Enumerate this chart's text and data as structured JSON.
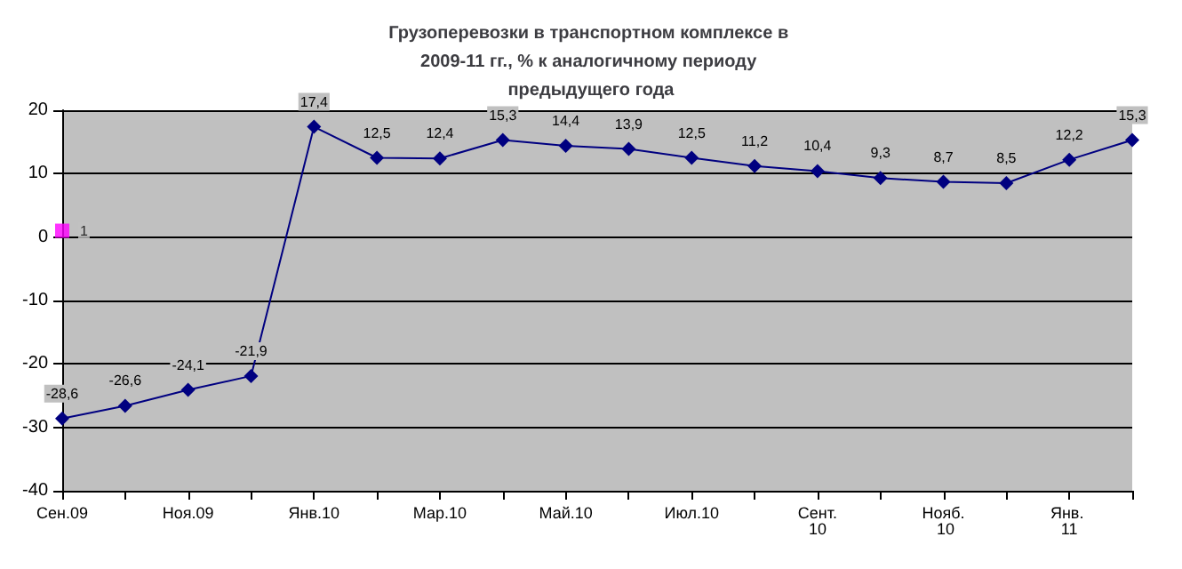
{
  "chart_data": {
    "type": "line",
    "title": "Грузоперевозки в транспортном комплексе в 2009-11 гг., % к аналогичному периоду предыдущего года",
    "categories": [
      "Сен.09",
      null,
      "Ноя.09",
      null,
      "Янв.10",
      null,
      "Мар.10",
      null,
      "Май.10",
      null,
      "Июл.10",
      null,
      "Сент.10",
      null,
      "Нояб. 10",
      null,
      "Янв. 11",
      null
    ],
    "series": [
      {
        "color": "#000080",
        "marker": "diamond",
        "values": [
          -28.6,
          -26.6,
          -24.1,
          -21.9,
          17.4,
          12.5,
          12.4,
          15.3,
          14.4,
          13.9,
          12.5,
          11.2,
          10.4,
          9.3,
          8.7,
          8.5,
          12.2,
          15.3
        ],
        "value_labels": [
          "-28,6",
          "-26,6",
          "-24,1",
          "-21,9",
          "17,4",
          "12,5",
          "12,4",
          "15,3",
          "14,4",
          "13,9",
          "12,5",
          "11,2",
          "10,4",
          "9,3",
          "8,7",
          "8,5",
          "12,2",
          "15,3"
        ]
      },
      {
        "type": "scatter",
        "color": "#ff00ff",
        "marker": "square",
        "values": [
          1,
          null,
          null,
          null,
          null,
          null,
          null,
          null,
          null,
          null,
          null,
          null,
          null,
          null,
          null,
          null,
          null,
          null
        ],
        "value_labels": [
          "1",
          null,
          null,
          null,
          null,
          null,
          null,
          null,
          null,
          null,
          null,
          null,
          null,
          null,
          null,
          null,
          null,
          null
        ]
      }
    ],
    "ylim": [
      -40,
      20
    ],
    "yticks": [
      -40,
      -30,
      -20,
      -10,
      0,
      10,
      20
    ],
    "grid": "y"
  }
}
